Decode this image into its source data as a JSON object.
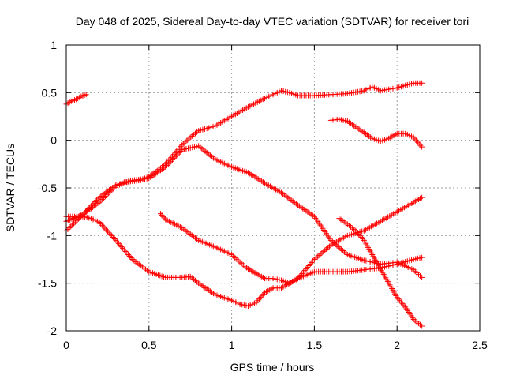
{
  "chart_data": {
    "type": "scatter",
    "title": "Day 048 of 2025, Sidereal Day-to-day VTEC variation (SDTVAR) for receiver tori",
    "xlabel": "GPS time / hours",
    "ylabel": "SDTVAR / TECUs",
    "xlim": [
      0,
      2.5
    ],
    "ylim": [
      -2,
      1
    ],
    "xticks": [
      0,
      0.5,
      1,
      1.5,
      2,
      2.5
    ],
    "xtick_labels": [
      "0",
      "0.5",
      "1",
      "1.5",
      "2",
      "2.5"
    ],
    "yticks": [
      -2,
      -1.5,
      -1,
      -0.5,
      0,
      0.5,
      1
    ],
    "ytick_labels": [
      "-2",
      "-1.5",
      "-1",
      "-0.5",
      "0",
      "0.5",
      "1"
    ],
    "grid": true,
    "marker": "+",
    "color": "#ff0000",
    "series": [
      {
        "x": [
          0,
          0.03,
          0.06,
          0.09,
          0.12
        ],
        "y": [
          0.38,
          0.41,
          0.43,
          0.46,
          0.48
        ]
      },
      {
        "x": [
          0,
          0.1,
          0.2,
          0.3,
          0.35,
          0.45,
          0.5,
          0.55,
          0.6,
          0.65,
          0.7,
          0.75,
          0.8,
          0.9,
          1.0,
          1.1,
          1.2,
          1.25,
          1.3,
          1.35,
          1.4,
          1.5,
          1.6,
          1.7,
          1.8,
          1.85,
          1.9,
          2.0,
          2.1,
          2.15
        ],
        "y": [
          -0.95,
          -0.78,
          -0.6,
          -0.47,
          -0.44,
          -0.42,
          -0.38,
          -0.32,
          -0.25,
          -0.15,
          -0.05,
          0.03,
          0.1,
          0.15,
          0.25,
          0.35,
          0.44,
          0.48,
          0.52,
          0.5,
          0.47,
          0.47,
          0.48,
          0.49,
          0.52,
          0.56,
          0.52,
          0.55,
          0.6,
          0.6
        ]
      },
      {
        "x": [
          0,
          0.05,
          0.1,
          0.15,
          0.2,
          0.3,
          0.4,
          0.5,
          0.6,
          0.7,
          0.75,
          0.8,
          0.9,
          1.0,
          1.05,
          1.1,
          1.15,
          1.2,
          1.25,
          1.3,
          1.4,
          1.5,
          1.6,
          1.7,
          1.8,
          1.9,
          2.0,
          2.1,
          2.15
        ],
        "y": [
          -0.8,
          -0.8,
          -0.8,
          -0.82,
          -0.86,
          -1.05,
          -1.25,
          -1.38,
          -1.44,
          -1.44,
          -1.43,
          -1.5,
          -1.62,
          -1.68,
          -1.72,
          -1.74,
          -1.7,
          -1.6,
          -1.55,
          -1.55,
          -1.45,
          -1.38,
          -1.38,
          -1.38,
          -1.36,
          -1.34,
          -1.3,
          -1.25,
          -1.23
        ]
      },
      {
        "x": [
          0,
          0.1,
          0.2,
          0.3,
          0.4,
          0.5,
          0.6,
          0.7,
          0.8,
          0.9,
          1.0,
          1.1,
          1.2,
          1.3,
          1.4,
          1.5,
          1.6,
          1.7,
          1.8,
          1.9,
          2.0,
          2.1,
          2.15
        ],
        "y": [
          -0.85,
          -0.78,
          -0.65,
          -0.48,
          -0.42,
          -0.4,
          -0.28,
          -0.1,
          -0.06,
          -0.2,
          -0.28,
          -0.34,
          -0.45,
          -0.55,
          -0.68,
          -0.8,
          -1.05,
          -1.2,
          -1.26,
          -1.3,
          -1.28,
          -1.36,
          -1.44
        ]
      },
      {
        "x": [
          0.57,
          0.6,
          0.7,
          0.8,
          0.9,
          1.0,
          1.05,
          1.1,
          1.15,
          1.2,
          1.25,
          1.3,
          1.35,
          1.4,
          1.5,
          1.6,
          1.7,
          1.8,
          1.9,
          2.0,
          2.1,
          2.15
        ],
        "y": [
          -0.77,
          -0.83,
          -0.92,
          -1.05,
          -1.12,
          -1.2,
          -1.28,
          -1.35,
          -1.4,
          -1.45,
          -1.45,
          -1.47,
          -1.5,
          -1.45,
          -1.25,
          -1.1,
          -1.0,
          -0.95,
          -0.85,
          -0.75,
          -0.65,
          -0.6
        ]
      },
      {
        "x": [
          1.6,
          1.65,
          1.7,
          1.75,
          1.8,
          1.85,
          1.9,
          1.95,
          2.0,
          2.05,
          2.1,
          2.15
        ],
        "y": [
          0.21,
          0.22,
          0.2,
          0.14,
          0.08,
          0.02,
          -0.01,
          0.02,
          0.07,
          0.07,
          0.03,
          -0.07
        ]
      },
      {
        "x": [
          1.65,
          1.7,
          1.75,
          1.8,
          1.85,
          1.9,
          1.95,
          2.0,
          2.05,
          2.1,
          2.15
        ],
        "y": [
          -0.82,
          -0.88,
          -0.95,
          -1.05,
          -1.2,
          -1.35,
          -1.5,
          -1.65,
          -1.75,
          -1.88,
          -1.95
        ]
      }
    ]
  }
}
